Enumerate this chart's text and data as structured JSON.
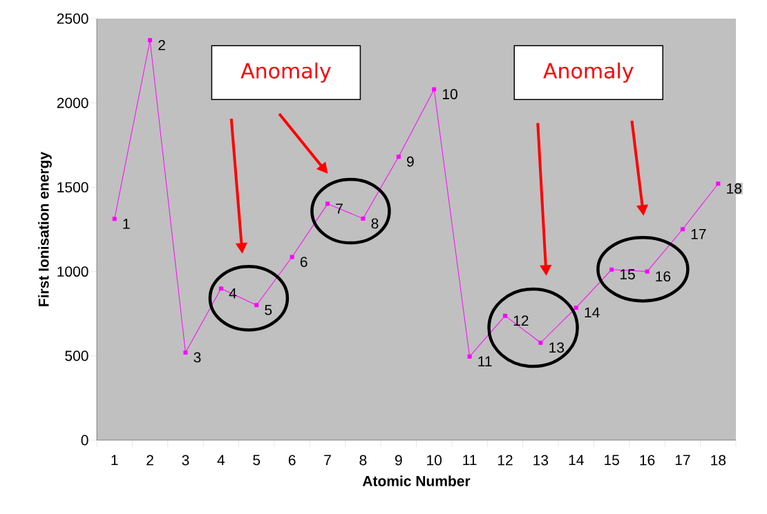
{
  "chart_data": {
    "type": "line",
    "categories": [
      "1",
      "2",
      "3",
      "4",
      "5",
      "6",
      "7",
      "8",
      "9",
      "10",
      "11",
      "12",
      "13",
      "14",
      "15",
      "16",
      "17",
      "18"
    ],
    "values": [
      1312,
      2372,
      520,
      899,
      801,
      1086,
      1402,
      1314,
      1681,
      2081,
      496,
      738,
      578,
      786,
      1012,
      1000,
      1251,
      1521
    ],
    "color": "#ff00ff",
    "xlabel": "Atomic Number",
    "ylabel": "First Ionisation energy",
    "ylim": [
      0,
      2500
    ],
    "yticks": [
      0,
      500,
      1000,
      1500,
      2000,
      2500
    ],
    "annotations": [
      "Anomaly",
      "Anomaly",
      {
        "text": "1",
        "x": "1",
        "y": 1312
      },
      {
        "text": "2",
        "x": "2",
        "y": 2372
      },
      {
        "text": "3",
        "x": "3",
        "y": 520
      },
      {
        "text": "4",
        "x": "4",
        "y": 899
      },
      {
        "text": "5",
        "x": "5",
        "y": 801
      },
      {
        "text": "6",
        "x": "6",
        "y": 1086
      },
      {
        "text": "7",
        "x": "7",
        "y": 1402
      },
      {
        "text": "8",
        "x": "8",
        "y": 1314
      },
      {
        "text": "9",
        "x": "9",
        "y": 1681
      },
      {
        "text": "10",
        "x": "10",
        "y": 2081
      },
      {
        "text": "11",
        "x": "11",
        "y": 496
      },
      {
        "text": "12",
        "x": "12",
        "y": 738
      },
      {
        "text": "13",
        "x": "13",
        "y": 578
      },
      {
        "text": "14",
        "x": "14",
        "y": 786
      },
      {
        "text": "15",
        "x": "15",
        "y": 1012
      },
      {
        "text": "16",
        "x": "16",
        "y": 1000
      },
      {
        "text": "17",
        "x": "17",
        "y": 1251
      },
      {
        "text": "18",
        "x": "18",
        "y": 1521
      }
    ],
    "marker": "square",
    "line_style": "solid",
    "grid": false,
    "legend": false
  }
}
